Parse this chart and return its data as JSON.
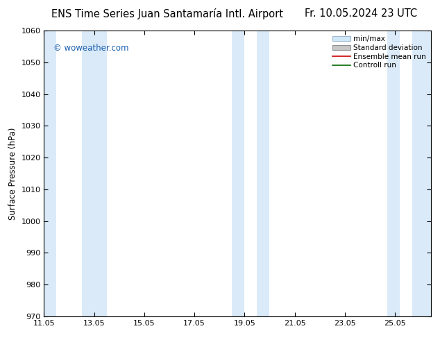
{
  "title": "ENS Time Series Juan Santamaría Intl. Airport",
  "date_label": "Fr. 10.05.2024 23 UTC",
  "ylabel": "Surface Pressure (hPa)",
  "xlim": [
    11.05,
    26.5
  ],
  "ylim": [
    970,
    1060
  ],
  "yticks": [
    970,
    980,
    990,
    1000,
    1010,
    1020,
    1030,
    1040,
    1050,
    1060
  ],
  "xticks": [
    11.05,
    13.05,
    15.05,
    17.05,
    19.05,
    21.05,
    23.05,
    25.05
  ],
  "xtick_labels": [
    "11.05",
    "13.05",
    "15.05",
    "17.05",
    "19.05",
    "21.05",
    "23.05",
    "25.05"
  ],
  "background_color": "#ffffff",
  "plot_bg_color": "#ffffff",
  "shaded_bands": [
    {
      "x_start": 11.05,
      "x_end": 11.55,
      "color": "#daeaf8"
    },
    {
      "x_start": 12.55,
      "x_end": 13.55,
      "color": "#daeaf8"
    },
    {
      "x_start": 18.55,
      "x_end": 19.05,
      "color": "#daeaf8"
    },
    {
      "x_start": 19.55,
      "x_end": 20.05,
      "color": "#daeaf8"
    },
    {
      "x_start": 24.75,
      "x_end": 25.25,
      "color": "#daeaf8"
    },
    {
      "x_start": 25.75,
      "x_end": 26.5,
      "color": "#daeaf8"
    }
  ],
  "legend_entries": [
    {
      "label": "min/max",
      "type": "fill_line",
      "color": "#d0e8f8",
      "edge_color": "#a0b8d0"
    },
    {
      "label": "Standard deviation",
      "type": "fill_line",
      "color": "#c8c8c8",
      "edge_color": "#909090"
    },
    {
      "label": "Ensemble mean run",
      "type": "line",
      "color": "#cc0000"
    },
    {
      "label": "Controll run",
      "type": "line",
      "color": "#006600"
    }
  ],
  "watermark": "© woweather.com",
  "watermark_color": "#1a5fb0",
  "title_fontsize": 10.5,
  "date_fontsize": 10.5,
  "axis_fontsize": 8.5,
  "tick_fontsize": 8,
  "legend_fontsize": 7.5
}
